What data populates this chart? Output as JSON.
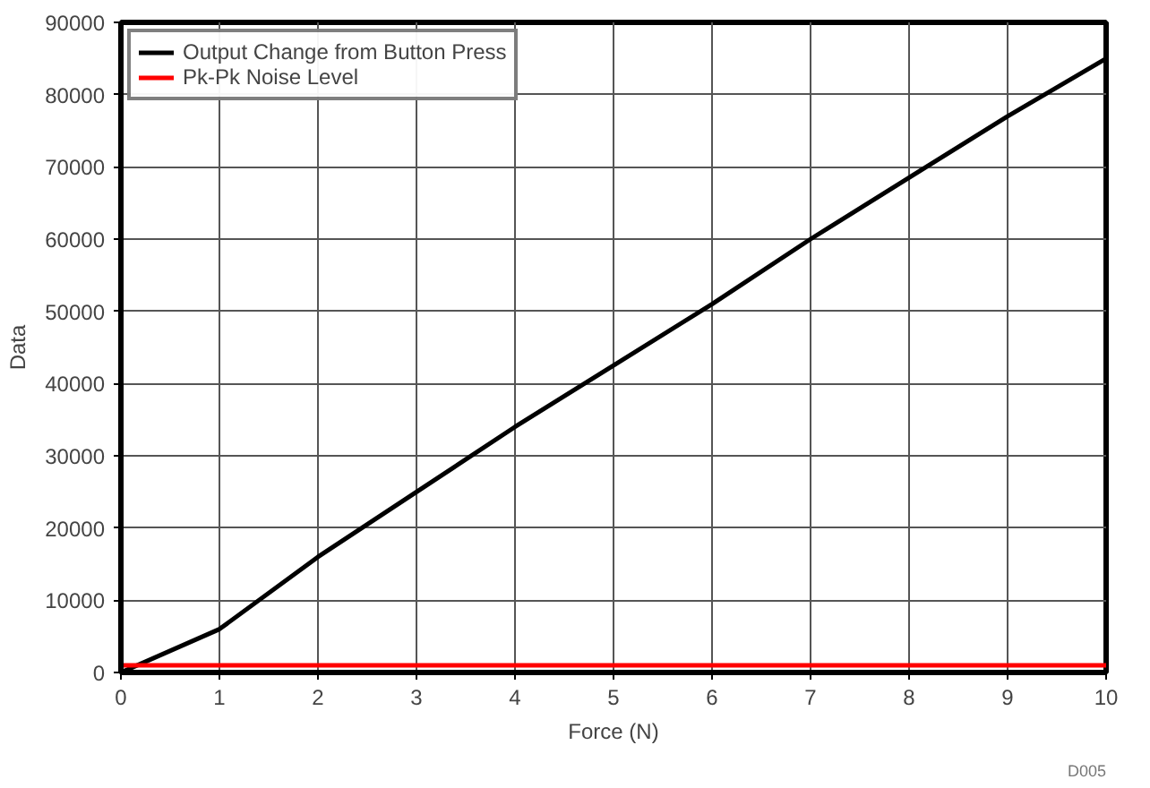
{
  "chart_data": {
    "type": "line",
    "xlabel": "Force (N)",
    "ylabel": "Data",
    "x": [
      0,
      1,
      2,
      3,
      4,
      5,
      6,
      7,
      8,
      9,
      10
    ],
    "series": [
      {
        "name": "Output Change from Button Press",
        "color": "#000000",
        "values": [
          0,
          6000,
          16000,
          25000,
          34000,
          42500,
          51000,
          60000,
          68500,
          77000,
          85000
        ]
      },
      {
        "name": "Pk-Pk Noise Level",
        "color": "#ff0000",
        "values": [
          1000,
          1000,
          1000,
          1000,
          1000,
          1000,
          1000,
          1000,
          1000,
          1000,
          1000
        ]
      }
    ],
    "xlim": [
      0,
      10
    ],
    "ylim": [
      0,
      90000
    ],
    "xticks": [
      0,
      1,
      2,
      3,
      4,
      5,
      6,
      7,
      8,
      9,
      10
    ],
    "yticks": [
      0,
      10000,
      20000,
      30000,
      40000,
      50000,
      60000,
      70000,
      80000,
      90000
    ],
    "grid": true,
    "legend": "top left",
    "line_style": "solid",
    "annotations": [
      "D005"
    ]
  }
}
